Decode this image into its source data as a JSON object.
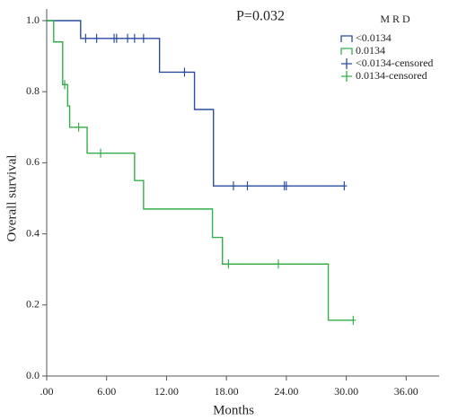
{
  "chart_data": {
    "type": "kaplan-meier",
    "annotation": "P=0.032",
    "xlabel": "Months",
    "ylabel": "Overall survival",
    "legend_title": "M R D",
    "legend": "upper right",
    "xlim": [
      0,
      39.3
    ],
    "ylim": [
      0,
      1
    ],
    "xticks": [
      {
        "value": 0,
        "label": ".00"
      },
      {
        "value": 6,
        "label": "6.00"
      },
      {
        "value": 12,
        "label": "12.00"
      },
      {
        "value": 18,
        "label": "18.00"
      },
      {
        "value": 24,
        "label": "24.00"
      },
      {
        "value": 30,
        "label": "30.00"
      },
      {
        "value": 36,
        "label": "36.00"
      }
    ],
    "yticks": [
      {
        "value": 0,
        "label": "0.0"
      },
      {
        "value": 0.2,
        "label": "0.2"
      },
      {
        "value": 0.4,
        "label": "0.4"
      },
      {
        "value": 0.6,
        "label": "0.6"
      },
      {
        "value": 0.8,
        "label": "0.8"
      },
      {
        "value": 1,
        "label": "1.0"
      }
    ],
    "series": [
      {
        "name": "<0.0134",
        "color": "#2b4ea0",
        "line": "step",
        "x": [
          0,
          3.4,
          11.3,
          14.8,
          16.7,
          29.8
        ],
        "values": [
          1.0,
          0.95,
          0.855,
          0.75,
          0.535,
          0.535
        ]
      },
      {
        "name": "0.0134",
        "color": "#33b04a",
        "line": "step",
        "x": [
          0,
          0.7,
          1.6,
          2.1,
          2.3,
          4.05,
          8.8,
          9.7,
          16.6,
          17.6,
          28.2,
          30.7
        ],
        "values": [
          1.0,
          0.94,
          0.82,
          0.76,
          0.7,
          0.627,
          0.55,
          0.47,
          0.39,
          0.315,
          0.157,
          0.157
        ]
      },
      {
        "name": "<0.0134-censored",
        "color": "#2b4ea0",
        "marker": "+",
        "x": [
          3.9,
          5.0,
          6.75,
          7.0,
          8.1,
          8.8,
          9.7,
          13.8,
          18.7,
          20.1,
          23.8,
          24.0,
          29.8
        ],
        "values": [
          0.95,
          0.95,
          0.95,
          0.95,
          0.95,
          0.95,
          0.95,
          0.855,
          0.535,
          0.535,
          0.535,
          0.535,
          0.535
        ]
      },
      {
        "name": "0.0134-censored",
        "color": "#33b04a",
        "marker": "+",
        "x": [
          1.8,
          3.2,
          5.4,
          18.2,
          23.2,
          30.7
        ],
        "values": [
          0.82,
          0.7,
          0.627,
          0.315,
          0.315,
          0.157
        ]
      }
    ]
  }
}
